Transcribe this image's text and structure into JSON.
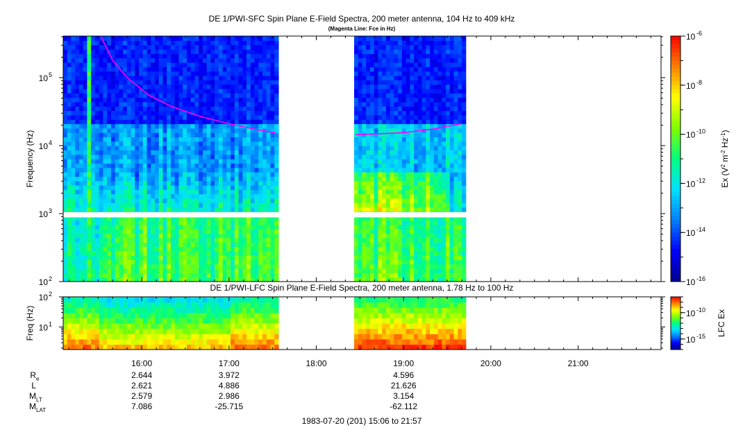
{
  "title": "DE 1/PWI-SFC  Spin Plane E-Field Spectra, 200 meter antenna, 104 Hz to 409 kHz",
  "subtitle": "(Magenta Line: Fce in Hz)",
  "lfc_title": "DE 1/PWI-LFC  Spin Plane E-Field Spectra, 200 meter antenna, 1.78 Hz to 100 Hz",
  "footer": "1983-07-20 (201) 15:06 to 21:57",
  "colors": {
    "fce_line": "#ff00ff",
    "colormap": [
      "#00008b",
      "#0000ff",
      "#0080ff",
      "#00e0ff",
      "#00ff80",
      "#80ff00",
      "#ffff00",
      "#ff8000",
      "#ff0000"
    ]
  },
  "chart_data": [
    {
      "type": "heatmap",
      "name": "sfc",
      "ylabel": "Frequency (Hz)",
      "yscale": "log",
      "ylim": [
        100,
        409000
      ],
      "xlim": [
        "15:06",
        "21:57"
      ],
      "yticks": [
        {
          "label_base": "10",
          "label_exp": "2",
          "value": 100
        },
        {
          "label_base": "10",
          "label_exp": "3",
          "value": 1000
        },
        {
          "label_base": "10",
          "label_exp": "4",
          "value": 10000
        },
        {
          "label_base": "10",
          "label_exp": "5",
          "value": 100000
        }
      ],
      "data_gaps": [
        [
          "17:33",
          "18:27"
        ],
        [
          "19:42",
          "21:57"
        ]
      ],
      "fce_line": {
        "color": "#ff00ff",
        "segments": [
          [
            [
              "15:32",
              400000
            ],
            [
              "15:40",
              180000
            ],
            [
              "15:50",
              100000
            ],
            [
              "16:05",
              55000
            ],
            [
              "16:20",
              38000
            ],
            [
              "16:40",
              27000
            ],
            [
              "17:00",
              21000
            ],
            [
              "17:20",
              17000
            ],
            [
              "17:32",
              15500
            ]
          ],
          [
            [
              "18:27",
              14500
            ],
            [
              "18:45",
              15000
            ],
            [
              "19:00",
              15500
            ],
            [
              "19:20",
              17500
            ],
            [
              "19:40",
              21000
            ]
          ]
        ]
      },
      "colorbar": {
        "label": "Ex (V2 m-2 Hz-1)",
        "label_parts": [
          "Ex (V",
          "2",
          " m",
          "-2",
          " Hz",
          "-1",
          ")"
        ],
        "ticks": [
          {
            "label_base": "10",
            "label_exp": "-6",
            "exp": -6
          },
          {
            "label_base": "10",
            "label_exp": "-8",
            "exp": -8
          },
          {
            "label_base": "10",
            "label_exp": "-10",
            "exp": -10
          },
          {
            "label_base": "10",
            "label_exp": "-12",
            "exp": -12
          },
          {
            "label_base": "10",
            "label_exp": "-14",
            "exp": -14
          },
          {
            "label_base": "10",
            "label_exp": "-16",
            "exp": -16
          }
        ],
        "range_exp": [
          -16,
          -6
        ]
      }
    },
    {
      "type": "heatmap",
      "name": "lfc",
      "ylabel": "Freq (Hz)",
      "yscale": "log",
      "ylim": [
        1.78,
        100
      ],
      "xlim": [
        "15:06",
        "21:57"
      ],
      "yticks": [
        {
          "label_base": "10",
          "label_exp": "1",
          "value": 10
        },
        {
          "label_base": "10",
          "label_exp": "2",
          "value": 100
        }
      ],
      "data_gaps": [
        [
          "17:33",
          "18:27"
        ],
        [
          "19:42",
          "21:57"
        ]
      ],
      "colorbar": {
        "label": "LFC Ex",
        "ticks": [
          {
            "label_base": "10",
            "label_exp": "-10",
            "exp": -10
          },
          {
            "label_base": "10",
            "label_exp": "-15",
            "exp": -15
          }
        ],
        "range_exp": [
          -17,
          -7
        ]
      }
    }
  ],
  "time_axis": {
    "ticks": [
      "16:00",
      "17:00",
      "18:00",
      "19:00",
      "20:00",
      "21:00"
    ]
  },
  "ephemeris": {
    "rows": [
      {
        "label_main": "R",
        "label_sub": "e",
        "values": [
          "2.644",
          "3.972",
          "4.596"
        ]
      },
      {
        "label_main": "L",
        "label_sub": "",
        "values": [
          "2.621",
          "4.886",
          "21.626"
        ]
      },
      {
        "label_main": "M",
        "label_sub": "LT",
        "values": [
          "2.579",
          "2.986",
          "3.154"
        ]
      },
      {
        "label_main": "M",
        "label_sub": "LAT",
        "values": [
          "7.086",
          "-25.715",
          "-62.112"
        ]
      }
    ],
    "columns": [
      "16:00",
      "17:00",
      "19:00"
    ]
  }
}
